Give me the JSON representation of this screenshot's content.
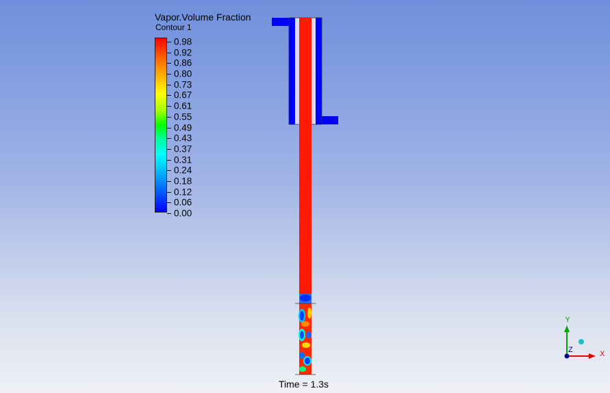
{
  "legend": {
    "title": "Vapor.Volume Fraction",
    "subtitle": "Contour 1",
    "ticks": [
      "0.98",
      "0.92",
      "0.86",
      "0.80",
      "0.73",
      "0.67",
      "0.61",
      "0.55",
      "0.49",
      "0.43",
      "0.37",
      "0.31",
      "0.24",
      "0.18",
      "0.12",
      "0.06",
      "0.00"
    ]
  },
  "time_label": "Time = 1.3s",
  "axes": {
    "x": "X",
    "y": "Y",
    "z": "Z"
  },
  "colors": {
    "vapor": "#ff1a00",
    "liquid": "#0000ff",
    "axis_x": "#e00000",
    "axis_y": "#00a000",
    "axis_z": "#00008b"
  }
}
